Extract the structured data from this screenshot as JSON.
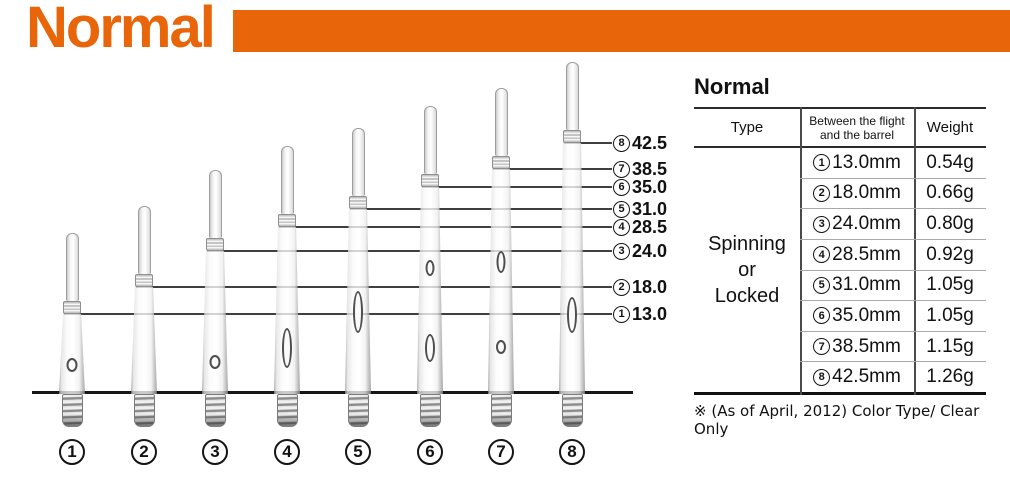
{
  "banner": {
    "title": "Normal"
  },
  "colors": {
    "accent": "#E8650A"
  },
  "diagram": {
    "labels": [
      {
        "num": "8",
        "value": "42.5"
      },
      {
        "num": "7",
        "value": "38.5"
      },
      {
        "num": "6",
        "value": "35.0"
      },
      {
        "num": "5",
        "value": "31.0"
      },
      {
        "num": "4",
        "value": "28.5"
      },
      {
        "num": "3",
        "value": "24.0"
      },
      {
        "num": "2",
        "value": "18.0"
      },
      {
        "num": "1",
        "value": "13.0"
      }
    ],
    "shafts": [
      {
        "num": "1"
      },
      {
        "num": "2"
      },
      {
        "num": "3"
      },
      {
        "num": "4"
      },
      {
        "num": "5"
      },
      {
        "num": "6"
      },
      {
        "num": "7"
      },
      {
        "num": "8"
      }
    ]
  },
  "spec_table": {
    "title": "Normal",
    "header": {
      "type": "Type",
      "between_line1": "Between the flight",
      "between_line2": "and the barrel",
      "weight": "Weight"
    },
    "type_value_lines": [
      "Spinning",
      "or",
      "Locked"
    ],
    "rows": [
      {
        "num": "1",
        "size": "13.0mm",
        "weight": "0.54g"
      },
      {
        "num": "2",
        "size": "18.0mm",
        "weight": "0.66g"
      },
      {
        "num": "3",
        "size": "24.0mm",
        "weight": "0.80g"
      },
      {
        "num": "4",
        "size": "28.5mm",
        "weight": "0.92g"
      },
      {
        "num": "5",
        "size": "31.0mm",
        "weight": "1.05g"
      },
      {
        "num": "6",
        "size": "35.0mm",
        "weight": "1.05g"
      },
      {
        "num": "7",
        "size": "38.5mm",
        "weight": "1.15g"
      },
      {
        "num": "8",
        "size": "42.5mm",
        "weight": "1.26g"
      }
    ],
    "footnote": "※ (As of April, 2012) Color Type/ Clear Only"
  }
}
